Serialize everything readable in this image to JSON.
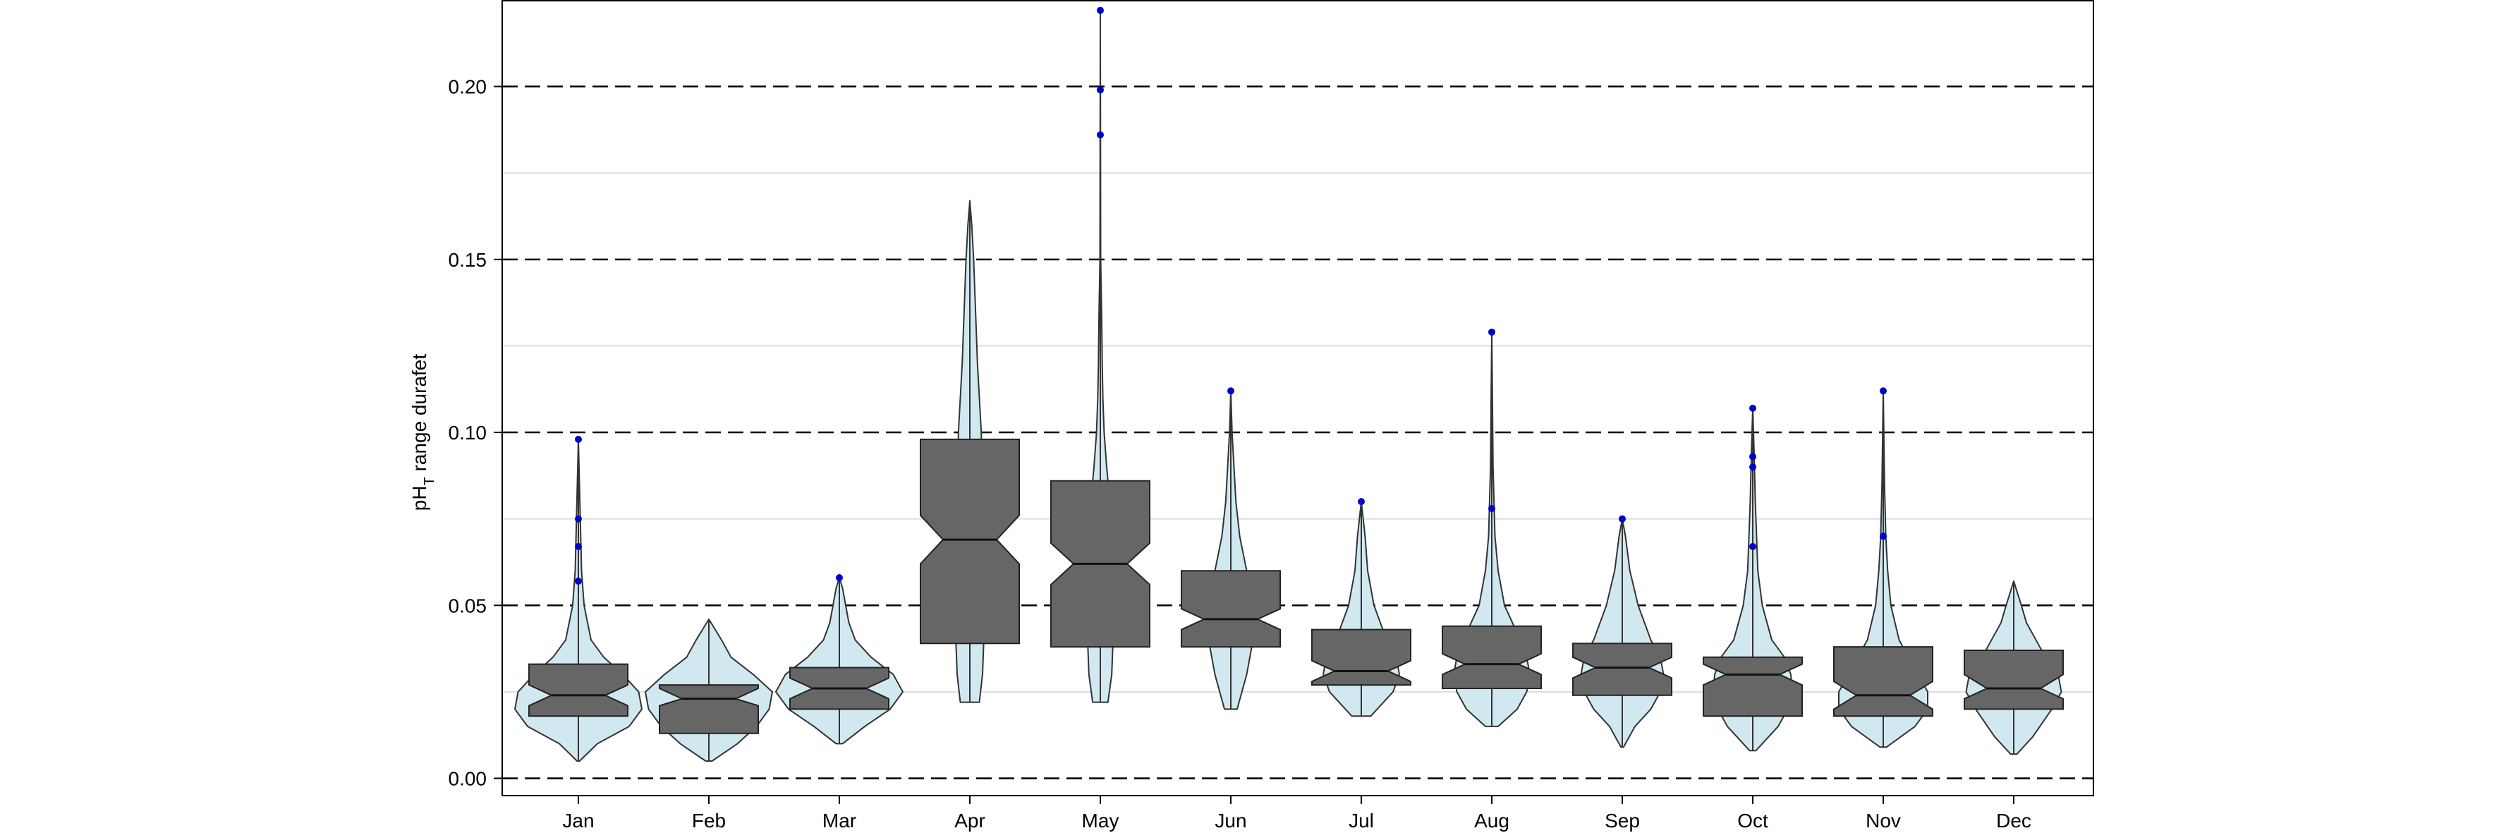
{
  "chart_data": {
    "type": "violin",
    "ylabel": "pH",
    "ylabel_subscript": "T",
    "ylabel_suffix": " range durafet",
    "xlabel": "",
    "ylim": [
      -0.005,
      0.225
    ],
    "yticks": [
      0.0,
      0.05,
      0.1,
      0.15,
      0.2
    ],
    "ytick_labels": [
      "0.00",
      "0.05",
      "0.10",
      "0.15",
      "0.20"
    ],
    "dashed_reference_lines": [
      0.0,
      0.05,
      0.1,
      0.15,
      0.2
    ],
    "minor_gridlines": [
      0.025,
      0.075,
      0.125,
      0.175,
      0.225
    ],
    "grid": true,
    "colors": {
      "violin_fill": "#d1e8f1",
      "box_fill": "#666666",
      "outlier": "#0000cc",
      "dashed_line": "#000000",
      "grid": "#dddddd"
    },
    "categories": [
      "Jan",
      "Feb",
      "Mar",
      "Apr",
      "May",
      "Jun",
      "Jul",
      "Aug",
      "Sep",
      "Oct",
      "Nov",
      "Dec"
    ],
    "series": [
      {
        "month": "Jan",
        "min": 0.005,
        "max": 0.098,
        "q1": 0.018,
        "median": 0.024,
        "q3": 0.033,
        "notch_low": 0.021,
        "notch_high": 0.027,
        "outliers": [
          0.057,
          0.067,
          0.075,
          0.098
        ],
        "density": [
          [
            0.005,
            0.02
          ],
          [
            0.01,
            0.3
          ],
          [
            0.015,
            0.8
          ],
          [
            0.02,
            1.0
          ],
          [
            0.025,
            0.95
          ],
          [
            0.03,
            0.7
          ],
          [
            0.035,
            0.4
          ],
          [
            0.04,
            0.2
          ],
          [
            0.05,
            0.09
          ],
          [
            0.06,
            0.05
          ],
          [
            0.075,
            0.03
          ],
          [
            0.09,
            0.01
          ],
          [
            0.098,
            0.0
          ]
        ]
      },
      {
        "month": "Feb",
        "min": 0.005,
        "max": 0.046,
        "q1": 0.013,
        "median": 0.023,
        "q3": 0.027,
        "notch_low": 0.021,
        "notch_high": 0.026,
        "outliers": [],
        "density": [
          [
            0.005,
            0.05
          ],
          [
            0.01,
            0.45
          ],
          [
            0.015,
            0.75
          ],
          [
            0.02,
            0.95
          ],
          [
            0.025,
            1.0
          ],
          [
            0.03,
            0.7
          ],
          [
            0.035,
            0.35
          ],
          [
            0.04,
            0.2
          ],
          [
            0.046,
            0.0
          ]
        ]
      },
      {
        "month": "Mar",
        "min": 0.01,
        "max": 0.058,
        "q1": 0.02,
        "median": 0.026,
        "q3": 0.032,
        "notch_low": 0.023,
        "notch_high": 0.029,
        "outliers": [
          0.058
        ],
        "density": [
          [
            0.01,
            0.05
          ],
          [
            0.015,
            0.4
          ],
          [
            0.02,
            0.8
          ],
          [
            0.025,
            1.0
          ],
          [
            0.03,
            0.85
          ],
          [
            0.035,
            0.5
          ],
          [
            0.04,
            0.25
          ],
          [
            0.045,
            0.15
          ],
          [
            0.05,
            0.1
          ],
          [
            0.055,
            0.05
          ],
          [
            0.058,
            0.0
          ]
        ]
      },
      {
        "month": "Apr",
        "min": 0.022,
        "max": 0.167,
        "q1": 0.039,
        "median": 0.069,
        "q3": 0.098,
        "notch_low": 0.062,
        "notch_high": 0.076,
        "outliers": [],
        "density": [
          [
            0.022,
            0.15
          ],
          [
            0.03,
            0.2
          ],
          [
            0.04,
            0.22
          ],
          [
            0.06,
            0.22
          ],
          [
            0.08,
            0.2
          ],
          [
            0.1,
            0.18
          ],
          [
            0.11,
            0.15
          ],
          [
            0.12,
            0.12
          ],
          [
            0.13,
            0.1
          ],
          [
            0.15,
            0.06
          ],
          [
            0.16,
            0.03
          ],
          [
            0.167,
            0.0
          ]
        ]
      },
      {
        "month": "May",
        "min": 0.022,
        "max": 0.222,
        "q1": 0.038,
        "median": 0.062,
        "q3": 0.086,
        "notch_low": 0.056,
        "notch_high": 0.068,
        "outliers": [
          0.186,
          0.199,
          0.222
        ],
        "density": [
          [
            0.022,
            0.12
          ],
          [
            0.03,
            0.18
          ],
          [
            0.04,
            0.2
          ],
          [
            0.06,
            0.2
          ],
          [
            0.08,
            0.15
          ],
          [
            0.09,
            0.1
          ],
          [
            0.1,
            0.06
          ],
          [
            0.11,
            0.04
          ],
          [
            0.12,
            0.03
          ],
          [
            0.135,
            0.02
          ],
          [
            0.15,
            0.005
          ],
          [
            0.222,
            0.0
          ]
        ]
      },
      {
        "month": "Jun",
        "min": 0.02,
        "max": 0.112,
        "q1": 0.038,
        "median": 0.046,
        "q3": 0.06,
        "notch_low": 0.043,
        "notch_high": 0.049,
        "outliers": [
          0.112
        ],
        "density": [
          [
            0.02,
            0.1
          ],
          [
            0.03,
            0.25
          ],
          [
            0.04,
            0.35
          ],
          [
            0.045,
            0.38
          ],
          [
            0.05,
            0.35
          ],
          [
            0.06,
            0.25
          ],
          [
            0.07,
            0.14
          ],
          [
            0.08,
            0.08
          ],
          [
            0.09,
            0.05
          ],
          [
            0.1,
            0.02
          ],
          [
            0.112,
            0.0
          ]
        ]
      },
      {
        "month": "Jul",
        "min": 0.018,
        "max": 0.08,
        "q1": 0.027,
        "median": 0.031,
        "q3": 0.043,
        "notch_low": 0.028,
        "notch_high": 0.034,
        "outliers": [
          0.08
        ],
        "density": [
          [
            0.018,
            0.15
          ],
          [
            0.025,
            0.5
          ],
          [
            0.03,
            0.6
          ],
          [
            0.035,
            0.55
          ],
          [
            0.04,
            0.4
          ],
          [
            0.05,
            0.2
          ],
          [
            0.06,
            0.1
          ],
          [
            0.07,
            0.06
          ],
          [
            0.08,
            0.0
          ]
        ]
      },
      {
        "month": "Aug",
        "min": 0.015,
        "max": 0.129,
        "q1": 0.026,
        "median": 0.033,
        "q3": 0.044,
        "notch_low": 0.03,
        "notch_high": 0.036,
        "outliers": [
          0.078,
          0.129
        ],
        "density": [
          [
            0.015,
            0.1
          ],
          [
            0.02,
            0.4
          ],
          [
            0.025,
            0.55
          ],
          [
            0.03,
            0.6
          ],
          [
            0.035,
            0.55
          ],
          [
            0.04,
            0.45
          ],
          [
            0.05,
            0.2
          ],
          [
            0.06,
            0.1
          ],
          [
            0.07,
            0.05
          ],
          [
            0.09,
            0.02
          ],
          [
            0.11,
            0.01
          ],
          [
            0.129,
            0.0
          ]
        ]
      },
      {
        "month": "Sep",
        "min": 0.009,
        "max": 0.075,
        "q1": 0.024,
        "median": 0.032,
        "q3": 0.039,
        "notch_low": 0.029,
        "notch_high": 0.035,
        "outliers": [
          0.075
        ],
        "density": [
          [
            0.009,
            0.02
          ],
          [
            0.015,
            0.2
          ],
          [
            0.02,
            0.45
          ],
          [
            0.025,
            0.6
          ],
          [
            0.03,
            0.65
          ],
          [
            0.035,
            0.6
          ],
          [
            0.04,
            0.45
          ],
          [
            0.05,
            0.25
          ],
          [
            0.06,
            0.12
          ],
          [
            0.07,
            0.05
          ],
          [
            0.075,
            0.0
          ]
        ]
      },
      {
        "month": "Oct",
        "min": 0.008,
        "max": 0.107,
        "q1": 0.018,
        "median": 0.03,
        "q3": 0.035,
        "notch_low": 0.027,
        "notch_high": 0.033,
        "outliers": [
          0.067,
          0.09,
          0.093,
          0.107
        ],
        "density": [
          [
            0.008,
            0.05
          ],
          [
            0.015,
            0.4
          ],
          [
            0.02,
            0.55
          ],
          [
            0.025,
            0.62
          ],
          [
            0.03,
            0.6
          ],
          [
            0.035,
            0.5
          ],
          [
            0.04,
            0.3
          ],
          [
            0.05,
            0.15
          ],
          [
            0.06,
            0.08
          ],
          [
            0.08,
            0.04
          ],
          [
            0.095,
            0.02
          ],
          [
            0.107,
            0.0
          ]
        ]
      },
      {
        "month": "Nov",
        "min": 0.009,
        "max": 0.112,
        "q1": 0.018,
        "median": 0.024,
        "q3": 0.038,
        "notch_low": 0.02,
        "notch_high": 0.028,
        "outliers": [
          0.07,
          0.112
        ],
        "density": [
          [
            0.009,
            0.05
          ],
          [
            0.015,
            0.5
          ],
          [
            0.02,
            0.7
          ],
          [
            0.025,
            0.7
          ],
          [
            0.03,
            0.55
          ],
          [
            0.035,
            0.4
          ],
          [
            0.04,
            0.25
          ],
          [
            0.05,
            0.12
          ],
          [
            0.06,
            0.07
          ],
          [
            0.07,
            0.04
          ],
          [
            0.085,
            0.02
          ],
          [
            0.112,
            0.0
          ]
        ]
      },
      {
        "month": "Dec",
        "min": 0.007,
        "max": 0.057,
        "q1": 0.02,
        "median": 0.026,
        "q3": 0.037,
        "notch_low": 0.023,
        "notch_high": 0.03,
        "outliers": [],
        "density": [
          [
            0.007,
            0.05
          ],
          [
            0.012,
            0.3
          ],
          [
            0.02,
            0.6
          ],
          [
            0.025,
            0.75
          ],
          [
            0.03,
            0.7
          ],
          [
            0.035,
            0.5
          ],
          [
            0.04,
            0.35
          ],
          [
            0.045,
            0.2
          ],
          [
            0.05,
            0.12
          ],
          [
            0.057,
            0.0
          ]
        ]
      }
    ]
  }
}
